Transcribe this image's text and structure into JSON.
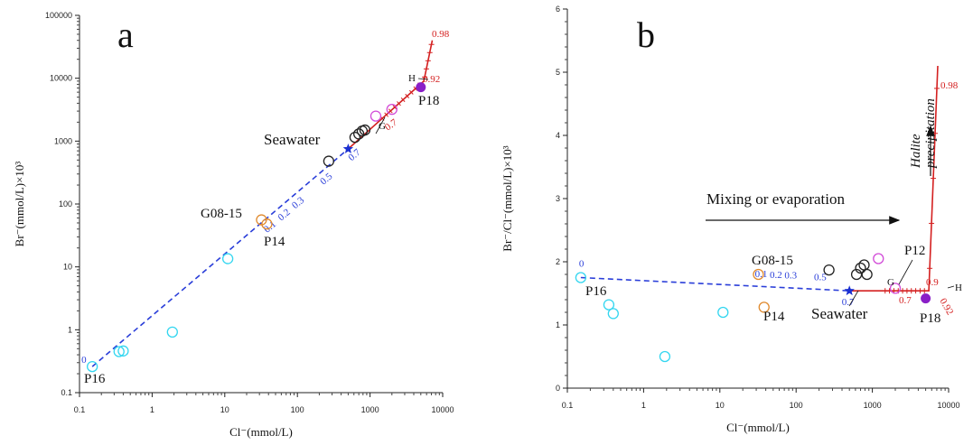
{
  "chart_data": [
    {
      "type": "scatter",
      "panel_label": "a",
      "xscale": "log",
      "yscale": "log",
      "xlim": [
        0.1,
        10000
      ],
      "ylim": [
        0.1,
        100000
      ],
      "xlabel": "Cl⁻(mmol/L)",
      "ylabel": "Br⁻(mmol/L)×10³",
      "xticks": [
        "0.1",
        "1",
        "10",
        "100",
        "1000",
        "10000"
      ],
      "yticks": [
        "0.1",
        "1",
        "10",
        "100",
        "1000",
        "10000",
        "100000"
      ],
      "series": [
        {
          "style": "cyan-circle",
          "points": [
            [
              0.15,
              0.26
            ],
            [
              0.35,
              0.45
            ],
            [
              0.4,
              0.46
            ],
            [
              1.9,
              0.92
            ],
            [
              11,
              13.5
            ]
          ]
        },
        {
          "style": "orange-circle",
          "points": [
            [
              32,
              56
            ],
            [
              38,
              48
            ]
          ]
        },
        {
          "style": "black-circle",
          "points": [
            [
              270,
              480
            ],
            [
              620,
              1150
            ],
            [
              700,
              1300
            ],
            [
              780,
              1450
            ],
            [
              850,
              1500
            ]
          ]
        },
        {
          "style": "magenta-circle",
          "points": [
            [
              1200,
              2500
            ],
            [
              2000,
              3200
            ]
          ]
        },
        {
          "style": "purple-filled",
          "points": [
            [
              5000,
              7200
            ]
          ]
        },
        {
          "style": "blue-star",
          "points": [
            [
              500,
              750
            ]
          ]
        }
      ],
      "mixing_line": {
        "points": [
          [
            0.15,
            0.26
          ],
          [
            500,
            750
          ]
        ],
        "labels": [
          "0",
          "0.1",
          "0.2",
          "0.3",
          "0.5",
          "0.7"
        ],
        "fractions": [
          0.0,
          0.1,
          0.2,
          0.3,
          0.5,
          0.7
        ]
      },
      "evaporation_line": {
        "points": [
          [
            500,
            750
          ],
          [
            5500,
            9000
          ],
          [
            7200,
            40000
          ]
        ]
      },
      "annotations": [
        {
          "text": "Seawater",
          "at": [
            500,
            750
          ]
        },
        {
          "text": "G08-15",
          "at": [
            32,
            56
          ]
        },
        {
          "text": "P14",
          "at": [
            38,
            48
          ]
        },
        {
          "text": "P16",
          "at": [
            0.15,
            0.26
          ]
        },
        {
          "text": "P18",
          "at": [
            5000,
            7200
          ]
        },
        {
          "text": "G",
          "at": [
            1300,
            2900
          ]
        },
        {
          "text": "H",
          "at": [
            4800,
            10000
          ]
        },
        {
          "text": "0.7",
          "at": [
            2000,
            2200
          ]
        },
        {
          "text": "0.92",
          "at": [
            6000,
            10000
          ]
        },
        {
          "text": "0.98",
          "at": [
            7200,
            40000
          ]
        }
      ]
    },
    {
      "type": "scatter",
      "panel_label": "b",
      "xscale": "log",
      "yscale": "linear",
      "xlim": [
        0.1,
        10000
      ],
      "ylim": [
        0,
        6
      ],
      "xlabel": "Cl⁻(mmol/L)",
      "ylabel": "Br⁻/Cl⁻(mmol/L)×10³",
      "xticks": [
        "0.1",
        "1",
        "10",
        "100",
        "1000",
        "10000"
      ],
      "yticks": [
        "0",
        "1",
        "2",
        "3",
        "4",
        "5",
        "6"
      ],
      "series": [
        {
          "style": "cyan-circle",
          "points": [
            [
              0.15,
              1.75
            ],
            [
              0.35,
              1.32
            ],
            [
              0.4,
              1.18
            ],
            [
              1.9,
              0.5
            ],
            [
              11,
              1.2
            ]
          ]
        },
        {
          "style": "orange-circle",
          "points": [
            [
              32,
              1.8
            ],
            [
              38,
              1.28
            ]
          ]
        },
        {
          "style": "black-circle",
          "points": [
            [
              270,
              1.87
            ],
            [
              620,
              1.8
            ],
            [
              700,
              1.9
            ],
            [
              780,
              1.95
            ],
            [
              850,
              1.8
            ]
          ]
        },
        {
          "style": "magenta-circle",
          "points": [
            [
              1200,
              2.05
            ],
            [
              2000,
              1.58
            ]
          ]
        },
        {
          "style": "purple-filled",
          "points": [
            [
              5000,
              1.42
            ]
          ]
        },
        {
          "style": "blue-star",
          "points": [
            [
              500,
              1.54
            ]
          ]
        }
      ],
      "mixing_line": {
        "points": [
          [
            0.15,
            1.75
          ],
          [
            500,
            1.54
          ]
        ],
        "labels": [
          "0",
          "0.1",
          "0.2",
          "0.3",
          "0.5",
          "0.7"
        ],
        "fractions": [
          0.0,
          0.1,
          0.2,
          0.3,
          0.5,
          0.7
        ]
      },
      "evaporation_line": {
        "points": [
          [
            500,
            1.54
          ],
          [
            5500,
            1.54
          ],
          [
            7200,
            5.1
          ]
        ]
      },
      "annotations": [
        {
          "text": "Seawater",
          "at": [
            500,
            1.54
          ]
        },
        {
          "text": "G08-15",
          "at": [
            32,
            1.8
          ]
        },
        {
          "text": "P14",
          "at": [
            38,
            1.28
          ]
        },
        {
          "text": "P16",
          "at": [
            0.15,
            1.75
          ]
        },
        {
          "text": "P12",
          "at": [
            2000,
            1.58
          ]
        },
        {
          "text": "P18",
          "at": [
            5000,
            1.42
          ]
        },
        {
          "text": "G",
          "at": [
            2000,
            1.58
          ]
        },
        {
          "text": "H",
          "at": [
            7000,
            1.54
          ]
        },
        {
          "text": "0.7",
          "at": [
            2000,
            1.54
          ]
        },
        {
          "text": "0.9",
          "at": [
            5500,
            1.54
          ]
        },
        {
          "text": "0.92",
          "at": [
            5500,
            1.54
          ]
        },
        {
          "text": "0.98",
          "at": [
            7200,
            5.1
          ]
        },
        {
          "text": "Mixing or evaporation",
          "at": [
            20,
            3.7
          ]
        },
        {
          "text": "Halite",
          "at": [
            5000,
            4.6
          ]
        },
        {
          "text": "precipitation",
          "at": [
            5000,
            4.6
          ]
        }
      ]
    }
  ],
  "colors": {
    "cyan": "#33d6f0",
    "orange": "#e08a2e",
    "black": "#222222",
    "magenta": "#d24bd8",
    "purple": "#8a1fc7",
    "blue": "#1a2fd1",
    "red": "#d42020",
    "dashed": "#2a3ed9"
  }
}
